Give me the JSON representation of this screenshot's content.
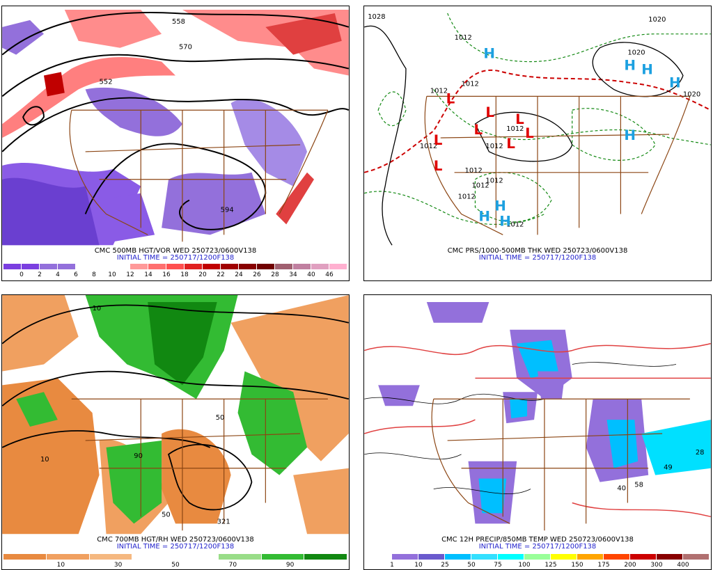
{
  "panels": [
    {
      "caption": "CMC 500MB HGT/VOR WED 250723/0600V138",
      "init": "INITIAL TIME = 250717/1200F138",
      "colors": [
        "#7b3fe0",
        "#7b3fe0",
        "#9370db",
        "#9370db",
        "#ffffff",
        "#ffffff",
        "#ffffff",
        "#ff9999",
        "#ff6f6f",
        "#ff4f4f",
        "#e02020",
        "#c00000",
        "#a00000",
        "#880000",
        "#700000",
        "#a06070",
        "#c080a0",
        "#e0a0c0",
        "#ffb0d0"
      ],
      "labels": [
        "0",
        "2",
        "4",
        "6",
        "8",
        "10",
        "12",
        "14",
        "16",
        "18",
        "20",
        "22",
        "24",
        "26",
        "28",
        "34",
        "40",
        "46"
      ],
      "contour_labels": [
        "558",
        "570",
        "552",
        "594"
      ]
    },
    {
      "caption": "CMC PRS/1000-500MB THK WED 250723/0600V138",
      "init": "INITIAL TIME = 250717/1200F138",
      "contour_labels": [
        "1028",
        "1012",
        "1012",
        "1012",
        "1012",
        "1012",
        "1012",
        "1012",
        "1012",
        "1012",
        "1012",
        "1012",
        "1020",
        "1020",
        "1020"
      ],
      "symbols_L": [
        "L",
        "L",
        "L",
        "L",
        "L",
        "L",
        "L",
        "L"
      ],
      "symbols_H": [
        "H",
        "H",
        "H",
        "H",
        "H",
        "H",
        "H",
        "H"
      ]
    },
    {
      "caption": "CMC 700MB HGT/RH WED 250723/0600V138",
      "init": "INITIAL TIME = 250717/1200F138",
      "colors": [
        "#e88a40",
        "#f0a060",
        "#f5b880",
        "#ffffff",
        "#ffffff",
        "#99dd88",
        "#33bb33",
        "#118811"
      ],
      "labels": [
        "10",
        "30",
        "50",
        "70",
        "90"
      ],
      "contour_labels": [
        "10",
        "10",
        "50",
        "50",
        "90",
        "321"
      ]
    },
    {
      "caption": "CMC 12H PRECIP/850MB TEMP WED 250723/0600V138",
      "init": "INITIAL TIME = 250717/1200F138",
      "colors": [
        "#ffffff",
        "#9370db",
        "#6a5acd",
        "#00bfff",
        "#33e0ff",
        "#00ffff",
        "#99ff99",
        "#ffff00",
        "#ffa500",
        "#ff4500",
        "#cc0000",
        "#880000",
        "#b07070"
      ],
      "labels": [
        "1",
        "10",
        "25",
        "50",
        "75",
        "100",
        "125",
        "150",
        "175",
        "200",
        "300",
        "400"
      ],
      "contour_labels": [
        "28",
        "40",
        "58",
        "49"
      ]
    }
  ]
}
